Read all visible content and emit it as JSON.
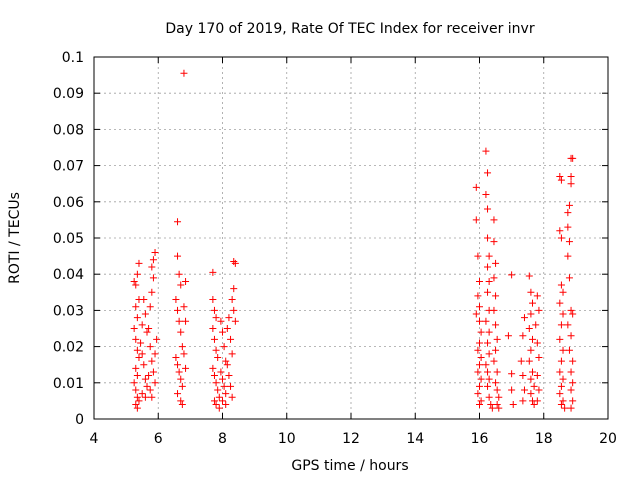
{
  "chart_data": {
    "type": "scatter",
    "title": "Day 170 of 2019, Rate Of TEC Index for receiver invr",
    "xlabel": "GPS time / hours",
    "ylabel": "ROTI / TECUs",
    "xlim": [
      4,
      20
    ],
    "ylim": [
      0,
      0.1
    ],
    "grid": true,
    "marker": "+",
    "color": "#ff0000",
    "x_ticks": [
      4,
      6,
      8,
      10,
      12,
      14,
      16,
      18,
      20
    ],
    "x_tick_labels": [
      "4",
      "6",
      "8",
      "10",
      "12",
      "14",
      "16",
      "18",
      "20"
    ],
    "y_ticks": [
      0,
      0.01,
      0.02,
      0.03,
      0.04,
      0.05,
      0.06,
      0.07,
      0.08,
      0.09,
      0.1
    ],
    "y_tick_labels": [
      "0",
      "0.01",
      "0.02",
      "0.03",
      "0.04",
      "0.05",
      "0.06",
      "0.07",
      "0.08",
      "0.09",
      "0.1"
    ],
    "series": [
      {
        "name": "ROTI",
        "points": [
          [
            5.25,
            0.038
          ],
          [
            5.3,
            0.037
          ],
          [
            5.35,
            0.04
          ],
          [
            5.4,
            0.043
          ],
          [
            5.3,
            0.031
          ],
          [
            5.35,
            0.028
          ],
          [
            5.4,
            0.033
          ],
          [
            5.25,
            0.025
          ],
          [
            5.3,
            0.022
          ],
          [
            5.35,
            0.019
          ],
          [
            5.4,
            0.017
          ],
          [
            5.3,
            0.014
          ],
          [
            5.35,
            0.012
          ],
          [
            5.25,
            0.01
          ],
          [
            5.3,
            0.008
          ],
          [
            5.35,
            0.006
          ],
          [
            5.4,
            0.005
          ],
          [
            5.3,
            0.004
          ],
          [
            5.35,
            0.003
          ],
          [
            5.45,
            0.021
          ],
          [
            5.5,
            0.026
          ],
          [
            5.55,
            0.033
          ],
          [
            5.6,
            0.029
          ],
          [
            5.65,
            0.024
          ],
          [
            5.5,
            0.018
          ],
          [
            5.55,
            0.015
          ],
          [
            5.6,
            0.011
          ],
          [
            5.65,
            0.009
          ],
          [
            5.5,
            0.007
          ],
          [
            5.6,
            0.006
          ],
          [
            5.7,
            0.025
          ],
          [
            5.75,
            0.031
          ],
          [
            5.8,
            0.035
          ],
          [
            5.85,
            0.039
          ],
          [
            5.8,
            0.042
          ],
          [
            5.85,
            0.044
          ],
          [
            5.9,
            0.046
          ],
          [
            5.75,
            0.02
          ],
          [
            5.8,
            0.016
          ],
          [
            5.85,
            0.013
          ],
          [
            5.9,
            0.018
          ],
          [
            5.95,
            0.022
          ],
          [
            5.7,
            0.012
          ],
          [
            5.75,
            0.008
          ],
          [
            5.8,
            0.006
          ],
          [
            5.9,
            0.01
          ],
          [
            6.6,
            0.0545
          ],
          [
            6.6,
            0.045
          ],
          [
            6.65,
            0.04
          ],
          [
            6.7,
            0.037
          ],
          [
            6.55,
            0.033
          ],
          [
            6.6,
            0.03
          ],
          [
            6.65,
            0.027
          ],
          [
            6.7,
            0.024
          ],
          [
            6.75,
            0.02
          ],
          [
            6.55,
            0.017
          ],
          [
            6.6,
            0.015
          ],
          [
            6.65,
            0.013
          ],
          [
            6.7,
            0.011
          ],
          [
            6.75,
            0.009
          ],
          [
            6.6,
            0.007
          ],
          [
            6.7,
            0.005
          ],
          [
            6.75,
            0.004
          ],
          [
            6.8,
            0.0955
          ],
          [
            6.85,
            0.038
          ],
          [
            6.8,
            0.031
          ],
          [
            6.85,
            0.027
          ],
          [
            6.8,
            0.018
          ],
          [
            6.85,
            0.014
          ],
          [
            7.7,
            0.0405
          ],
          [
            7.7,
            0.033
          ],
          [
            7.75,
            0.03
          ],
          [
            7.8,
            0.028
          ],
          [
            7.7,
            0.025
          ],
          [
            7.75,
            0.022
          ],
          [
            7.8,
            0.019
          ],
          [
            7.85,
            0.017
          ],
          [
            7.7,
            0.014
          ],
          [
            7.75,
            0.012
          ],
          [
            7.8,
            0.01
          ],
          [
            7.85,
            0.008
          ],
          [
            7.9,
            0.006
          ],
          [
            7.75,
            0.005
          ],
          [
            7.8,
            0.004
          ],
          [
            7.9,
            0.003
          ],
          [
            7.95,
            0.027
          ],
          [
            8.0,
            0.024
          ],
          [
            8.05,
            0.02
          ],
          [
            8.1,
            0.016
          ],
          [
            7.95,
            0.013
          ],
          [
            8.0,
            0.011
          ],
          [
            8.05,
            0.009
          ],
          [
            8.1,
            0.007
          ],
          [
            8.0,
            0.005
          ],
          [
            8.1,
            0.004
          ],
          [
            8.15,
            0.025
          ],
          [
            8.2,
            0.028
          ],
          [
            8.25,
            0.022
          ],
          [
            8.3,
            0.018
          ],
          [
            8.15,
            0.015
          ],
          [
            8.2,
            0.012
          ],
          [
            8.25,
            0.009
          ],
          [
            8.3,
            0.006
          ],
          [
            8.3,
            0.033
          ],
          [
            8.35,
            0.036
          ],
          [
            8.35,
            0.0435
          ],
          [
            8.4,
            0.043
          ],
          [
            8.35,
            0.03
          ],
          [
            8.4,
            0.027
          ],
          [
            15.9,
            0.064
          ],
          [
            15.9,
            0.055
          ],
          [
            15.95,
            0.045
          ],
          [
            16.0,
            0.038
          ],
          [
            15.95,
            0.034
          ],
          [
            16.0,
            0.031
          ],
          [
            15.9,
            0.029
          ],
          [
            16.0,
            0.027
          ],
          [
            16.05,
            0.024
          ],
          [
            16.0,
            0.021
          ],
          [
            15.95,
            0.019
          ],
          [
            16.05,
            0.017
          ],
          [
            16.0,
            0.015
          ],
          [
            15.95,
            0.013
          ],
          [
            16.05,
            0.011
          ],
          [
            16.0,
            0.009
          ],
          [
            15.95,
            0.007
          ],
          [
            16.05,
            0.005
          ],
          [
            16.0,
            0.004
          ],
          [
            16.2,
            0.074
          ],
          [
            16.25,
            0.068
          ],
          [
            16.2,
            0.062
          ],
          [
            16.25,
            0.058
          ],
          [
            16.25,
            0.05
          ],
          [
            16.3,
            0.045
          ],
          [
            16.25,
            0.042
          ],
          [
            16.3,
            0.038
          ],
          [
            16.25,
            0.035
          ],
          [
            16.3,
            0.03
          ],
          [
            16.2,
            0.027
          ],
          [
            16.3,
            0.024
          ],
          [
            16.25,
            0.021
          ],
          [
            16.3,
            0.018
          ],
          [
            16.2,
            0.015
          ],
          [
            16.25,
            0.013
          ],
          [
            16.3,
            0.011
          ],
          [
            16.25,
            0.009
          ],
          [
            16.3,
            0.006
          ],
          [
            16.35,
            0.004
          ],
          [
            16.4,
            0.003
          ],
          [
            16.45,
            0.055
          ],
          [
            16.45,
            0.049
          ],
          [
            16.5,
            0.043
          ],
          [
            16.45,
            0.039
          ],
          [
            16.5,
            0.034
          ],
          [
            16.45,
            0.03
          ],
          [
            16.5,
            0.026
          ],
          [
            16.55,
            0.022
          ],
          [
            16.5,
            0.019
          ],
          [
            16.45,
            0.016
          ],
          [
            16.55,
            0.013
          ],
          [
            16.5,
            0.01
          ],
          [
            16.55,
            0.008
          ],
          [
            16.6,
            0.006
          ],
          [
            16.55,
            0.004
          ],
          [
            16.6,
            0.003
          ],
          [
            17.0,
            0.0398
          ],
          [
            16.9,
            0.023
          ],
          [
            17.0,
            0.0125
          ],
          [
            17.0,
            0.008
          ],
          [
            17.05,
            0.004
          ],
          [
            17.3,
            0.016
          ],
          [
            17.35,
            0.023
          ],
          [
            17.4,
            0.028
          ],
          [
            17.35,
            0.012
          ],
          [
            17.4,
            0.008
          ],
          [
            17.35,
            0.005
          ],
          [
            17.55,
            0.0395
          ],
          [
            17.6,
            0.035
          ],
          [
            17.65,
            0.032
          ],
          [
            17.6,
            0.029
          ],
          [
            17.55,
            0.025
          ],
          [
            17.65,
            0.022
          ],
          [
            17.6,
            0.019
          ],
          [
            17.55,
            0.016
          ],
          [
            17.65,
            0.013
          ],
          [
            17.6,
            0.011
          ],
          [
            17.7,
            0.009
          ],
          [
            17.6,
            0.007
          ],
          [
            17.65,
            0.005
          ],
          [
            17.7,
            0.004
          ],
          [
            17.75,
            0.026
          ],
          [
            17.8,
            0.034
          ],
          [
            17.85,
            0.03
          ],
          [
            17.8,
            0.021
          ],
          [
            17.85,
            0.017
          ],
          [
            17.8,
            0.012
          ],
          [
            17.85,
            0.008
          ],
          [
            17.8,
            0.005
          ],
          [
            18.5,
            0.067
          ],
          [
            18.55,
            0.066
          ],
          [
            18.5,
            0.052
          ],
          [
            18.55,
            0.05
          ],
          [
            18.55,
            0.037
          ],
          [
            18.6,
            0.035
          ],
          [
            18.5,
            0.032
          ],
          [
            18.6,
            0.029
          ],
          [
            18.55,
            0.026
          ],
          [
            18.5,
            0.022
          ],
          [
            18.6,
            0.019
          ],
          [
            18.55,
            0.016
          ],
          [
            18.5,
            0.013
          ],
          [
            18.6,
            0.011
          ],
          [
            18.55,
            0.009
          ],
          [
            18.5,
            0.007
          ],
          [
            18.6,
            0.005
          ],
          [
            18.55,
            0.004
          ],
          [
            18.65,
            0.003
          ],
          [
            18.75,
            0.057
          ],
          [
            18.8,
            0.059
          ],
          [
            18.75,
            0.053
          ],
          [
            18.8,
            0.049
          ],
          [
            18.75,
            0.045
          ],
          [
            18.8,
            0.039
          ],
          [
            18.85,
            0.072
          ],
          [
            18.9,
            0.072
          ],
          [
            18.85,
            0.067
          ],
          [
            18.85,
            0.065
          ],
          [
            18.85,
            0.03
          ],
          [
            18.9,
            0.029
          ],
          [
            18.75,
            0.026
          ],
          [
            18.85,
            0.023
          ],
          [
            18.8,
            0.019
          ],
          [
            18.9,
            0.016
          ],
          [
            18.85,
            0.013
          ],
          [
            18.9,
            0.01
          ],
          [
            18.85,
            0.008
          ],
          [
            18.9,
            0.005
          ],
          [
            18.85,
            0.003
          ]
        ]
      }
    ]
  }
}
